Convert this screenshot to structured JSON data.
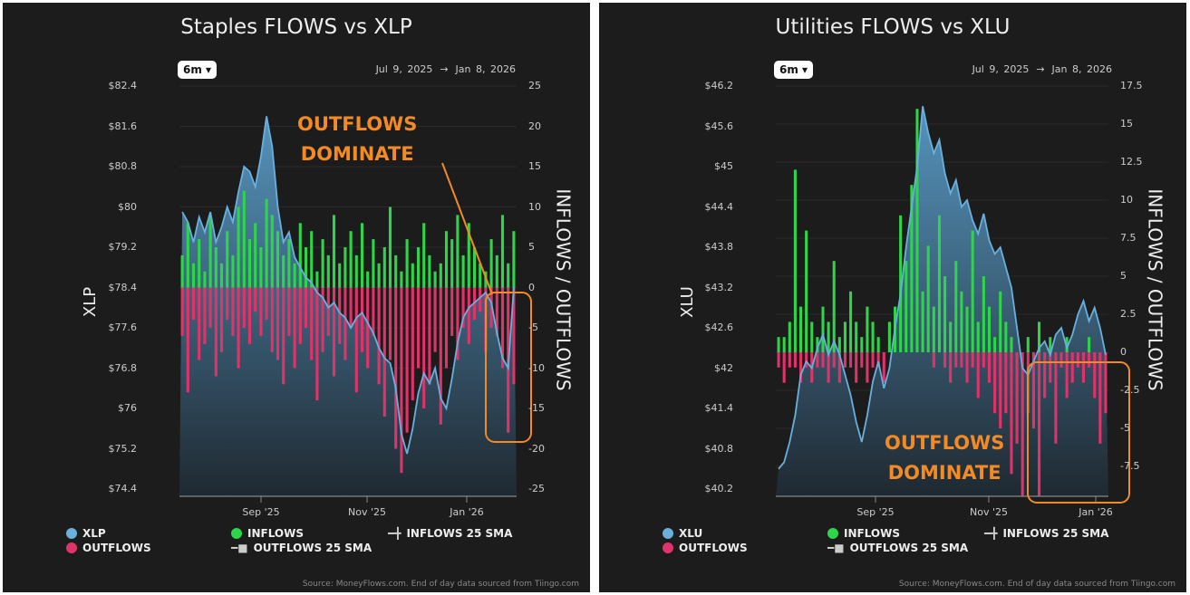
{
  "colors": {
    "price": "#6ab0dd",
    "inflows": "#2ed44a",
    "outflows": "#e0336a",
    "annotation": "#f28a25",
    "background": "#1c1c1c"
  },
  "chart_data": [
    {
      "type": "bar+area",
      "title": "Staples FLOWS vs XLP",
      "range_button": "6m",
      "date_start": "Jul 9, 2025",
      "date_arrow": "→",
      "date_end": "Jan 8, 2026",
      "ylabel_left": "XLP",
      "ylabel_right": "INFLOWS / OUTFLOWS",
      "price_ticks": [
        "$82.4",
        "$81.6",
        "$80.8",
        "$80",
        "$79.2",
        "$78.4",
        "$77.6",
        "$76.8",
        "$76",
        "$75.2",
        "$74.4"
      ],
      "price_ylim": [
        74.4,
        82.4
      ],
      "flow_ticks": [
        "25",
        "20",
        "15",
        "10",
        "5",
        "0",
        "-5",
        "-10",
        "-15",
        "-20",
        "-25"
      ],
      "flow_ylim": [
        -25,
        25
      ],
      "x_ticks": [
        "Sep '25",
        "Nov '25",
        "Jan '26"
      ],
      "price": [
        79.9,
        79.7,
        79.3,
        79.8,
        79.5,
        79.9,
        79.3,
        79.6,
        80.0,
        79.7,
        80.3,
        80.8,
        80.7,
        80.4,
        81.0,
        81.8,
        81.2,
        80.0,
        79.3,
        79.5,
        79.0,
        78.8,
        78.6,
        78.5,
        78.3,
        78.2,
        78.0,
        78.1,
        77.9,
        77.8,
        77.6,
        77.8,
        77.9,
        77.7,
        77.5,
        77.2,
        77.0,
        76.9,
        76.4,
        75.5,
        75.1,
        75.6,
        76.3,
        76.7,
        76.5,
        76.8,
        76.2,
        76.0,
        76.6,
        77.3,
        77.8,
        78.0,
        78.1,
        78.2,
        78.3,
        78.1,
        77.5,
        77.0,
        76.8,
        78.4
      ],
      "inflows": [
        4,
        8,
        3,
        6,
        2,
        9,
        5,
        3,
        7,
        4,
        10,
        12,
        6,
        8,
        5,
        11,
        9,
        7,
        4,
        6,
        3,
        8,
        5,
        7,
        2,
        6,
        4,
        9,
        3,
        5,
        7,
        4,
        8,
        2,
        6,
        3,
        5,
        10,
        4,
        2,
        6,
        3,
        5,
        8,
        4,
        2,
        3,
        7,
        6,
        9,
        4,
        8,
        5,
        3,
        2,
        6,
        4,
        9,
        3,
        7
      ],
      "outflows": [
        -6,
        -13,
        -4,
        -9,
        -7,
        -5,
        -11,
        -8,
        -4,
        -6,
        -10,
        -5,
        -7,
        -3,
        -6,
        -4,
        -8,
        -9,
        -12,
        -6,
        -10,
        -7,
        -5,
        -9,
        -14,
        -8,
        -6,
        -11,
        -7,
        -9,
        -5,
        -13,
        -8,
        -10,
        -6,
        -12,
        -16,
        -9,
        -20,
        -23,
        -18,
        -14,
        -10,
        -15,
        -12,
        -8,
        -17,
        -10,
        -6,
        -9,
        -5,
        -7,
        -4,
        -3,
        -8,
        -5,
        -6,
        -10,
        -18,
        -12
      ],
      "annotation": [
        "OUTFLOWS",
        "DOMINATE"
      ],
      "legend": [
        "XLP",
        "OUTFLOWS",
        "INFLOWS",
        "OUTFLOWS 25 SMA",
        "INFLOWS 25 SMA"
      ],
      "source": "Source: MoneyFlows.com. End of day data sourced from Tiingo.com"
    },
    {
      "type": "bar+area",
      "title": "Utilities FLOWS vs XLU",
      "range_button": "6m",
      "date_start": "Jul 9, 2025",
      "date_arrow": "→",
      "date_end": "Jan 8, 2026",
      "ylabel_left": "XLU",
      "ylabel_right": "INFLOWS / OUTFLOWS",
      "price_ticks": [
        "$46.2",
        "$45.6",
        "$45",
        "$44.4",
        "$43.8",
        "$43.2",
        "$42.6",
        "$42",
        "$41.4",
        "$40.8",
        "$40.2"
      ],
      "price_ylim": [
        40.2,
        46.2
      ],
      "flow_ticks": [
        "17.5",
        "15",
        "12.5",
        "10",
        "7.5",
        "5",
        "2.5",
        "0",
        "-2.5",
        "-5",
        "-7.5"
      ],
      "flow_ylim": [
        -7.5,
        17.5
      ],
      "x_ticks": [
        "Sep '25",
        "Nov '25",
        "Jan '26"
      ],
      "price": [
        40.5,
        40.6,
        40.9,
        41.3,
        41.9,
        42.1,
        42.0,
        42.3,
        42.5,
        42.2,
        42.4,
        42.2,
        41.9,
        41.6,
        41.2,
        40.9,
        41.3,
        41.8,
        42.1,
        41.7,
        42.0,
        42.6,
        43.1,
        43.8,
        44.4,
        45.0,
        45.9,
        45.5,
        45.2,
        45.4,
        44.9,
        44.6,
        44.8,
        44.4,
        44.5,
        44.2,
        44.0,
        44.3,
        43.9,
        43.7,
        43.8,
        43.5,
        43.2,
        42.6,
        42.0,
        41.9,
        42.1,
        42.3,
        42.4,
        42.2,
        42.5,
        42.6,
        42.3,
        42.5,
        42.8,
        43.0,
        42.7,
        42.9,
        42.6,
        42.2
      ],
      "inflows": [
        1,
        1,
        2,
        12,
        3,
        8,
        2,
        1,
        3,
        2,
        6,
        1,
        2,
        4,
        2,
        1,
        3,
        2,
        1,
        0,
        2,
        3,
        9,
        6,
        11,
        16,
        4,
        7,
        3,
        9,
        5,
        2,
        6,
        4,
        3,
        8,
        2,
        5,
        3,
        1,
        4,
        2,
        1,
        0,
        0,
        1,
        0,
        2,
        0,
        1,
        0,
        0,
        1,
        0,
        0,
        0,
        1,
        0,
        0,
        0
      ],
      "outflows": [
        -1,
        -2,
        -1,
        -1,
        -2,
        -1,
        -2,
        -1,
        -1,
        -2,
        -1,
        -2,
        -1,
        -1,
        -2,
        -1,
        -2,
        -1,
        -1,
        -2,
        0,
        0,
        0,
        0,
        0,
        0,
        0,
        0,
        -1,
        0,
        -1,
        -2,
        -1,
        -1,
        -2,
        -1,
        -3,
        -1,
        -2,
        -4,
        -5,
        -4,
        -8,
        -6,
        -9.5,
        -4,
        -5,
        -9.5,
        -3,
        -2,
        -6,
        -1,
        -3,
        -2,
        -1,
        -2,
        -1,
        -3,
        -6,
        -4
      ],
      "annotation": [
        "OUTFLOWS",
        "DOMINATE"
      ],
      "legend": [
        "XLU",
        "OUTFLOWS",
        "INFLOWS",
        "OUTFLOWS 25 SMA",
        "INFLOWS 25 SMA"
      ],
      "source": "Source: MoneyFlows.com. End of day data sourced from Tiingo.com"
    }
  ]
}
